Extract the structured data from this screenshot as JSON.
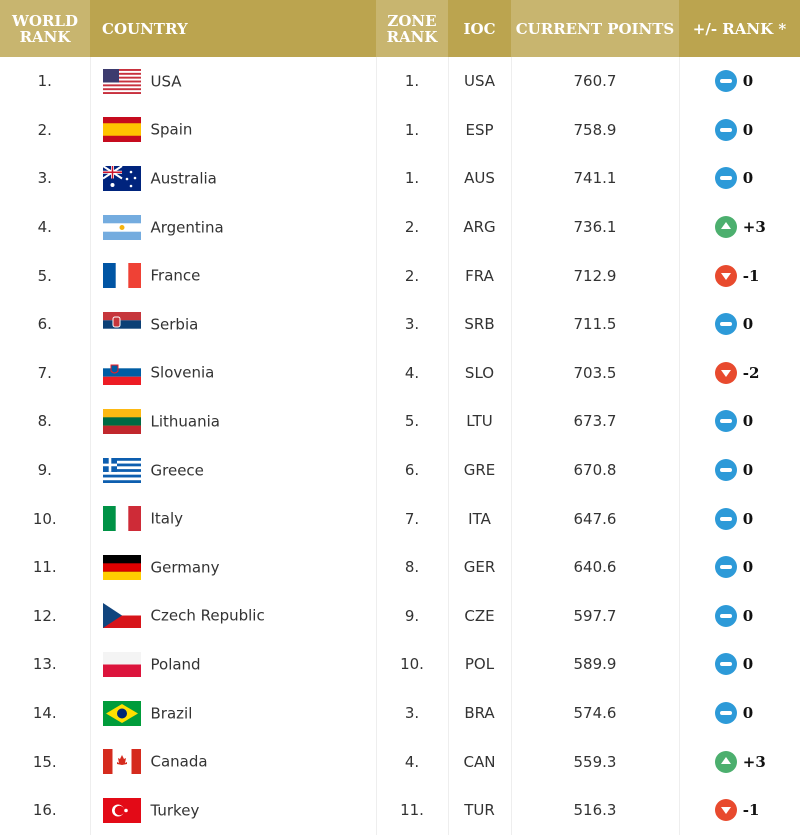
{
  "headers": {
    "world_rank": "WORLD RANK",
    "country": "COUNTRY",
    "zone_rank": "ZONE RANK",
    "ioc": "IOC",
    "points": "CURRENT POINTS",
    "change": "+/- RANK *"
  },
  "colors": {
    "header_light": "#c8b56f",
    "header_dark": "#bba44f",
    "same": "#2d9ad8",
    "up": "#4caf6e",
    "down": "#e84a2e"
  },
  "rows": [
    {
      "rank": "1.",
      "country": "USA",
      "zone": "1.",
      "ioc": "USA",
      "points": "760.7",
      "trend": "same",
      "change": "0"
    },
    {
      "rank": "2.",
      "country": "Spain",
      "zone": "1.",
      "ioc": "ESP",
      "points": "758.9",
      "trend": "same",
      "change": "0"
    },
    {
      "rank": "3.",
      "country": "Australia",
      "zone": "1.",
      "ioc": "AUS",
      "points": "741.1",
      "trend": "same",
      "change": "0"
    },
    {
      "rank": "4.",
      "country": "Argentina",
      "zone": "2.",
      "ioc": "ARG",
      "points": "736.1",
      "trend": "up",
      "change": "+3"
    },
    {
      "rank": "5.",
      "country": "France",
      "zone": "2.",
      "ioc": "FRA",
      "points": "712.9",
      "trend": "down",
      "change": "-1"
    },
    {
      "rank": "6.",
      "country": "Serbia",
      "zone": "3.",
      "ioc": "SRB",
      "points": "711.5",
      "trend": "same",
      "change": "0"
    },
    {
      "rank": "7.",
      "country": "Slovenia",
      "zone": "4.",
      "ioc": "SLO",
      "points": "703.5",
      "trend": "down",
      "change": "-2"
    },
    {
      "rank": "8.",
      "country": "Lithuania",
      "zone": "5.",
      "ioc": "LTU",
      "points": "673.7",
      "trend": "same",
      "change": "0"
    },
    {
      "rank": "9.",
      "country": "Greece",
      "zone": "6.",
      "ioc": "GRE",
      "points": "670.8",
      "trend": "same",
      "change": "0"
    },
    {
      "rank": "10.",
      "country": "Italy",
      "zone": "7.",
      "ioc": "ITA",
      "points": "647.6",
      "trend": "same",
      "change": "0"
    },
    {
      "rank": "11.",
      "country": "Germany",
      "zone": "8.",
      "ioc": "GER",
      "points": "640.6",
      "trend": "same",
      "change": "0"
    },
    {
      "rank": "12.",
      "country": "Czech Republic",
      "zone": "9.",
      "ioc": "CZE",
      "points": "597.7",
      "trend": "same",
      "change": "0"
    },
    {
      "rank": "13.",
      "country": "Poland",
      "zone": "10.",
      "ioc": "POL",
      "points": "589.9",
      "trend": "same",
      "change": "0"
    },
    {
      "rank": "14.",
      "country": "Brazil",
      "zone": "3.",
      "ioc": "BRA",
      "points": "574.6",
      "trend": "same",
      "change": "0"
    },
    {
      "rank": "15.",
      "country": "Canada",
      "zone": "4.",
      "ioc": "CAN",
      "points": "559.3",
      "trend": "up",
      "change": "+3"
    },
    {
      "rank": "16.",
      "country": "Turkey",
      "zone": "11.",
      "ioc": "TUR",
      "points": "516.3",
      "trend": "down",
      "change": "-1"
    }
  ]
}
